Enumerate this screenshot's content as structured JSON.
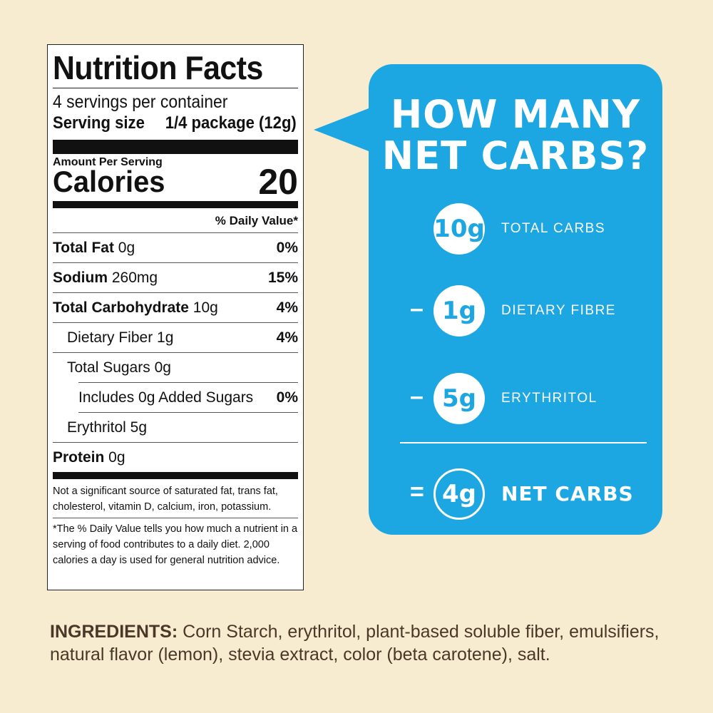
{
  "nutrition": {
    "title": "Nutrition Facts",
    "servings": "4 servings per container",
    "serving_size_label": "Serving size",
    "serving_size_value": "1/4 package (12g)",
    "amount_per_serving": "Amount Per Serving",
    "calories_label": "Calories",
    "calories_value": "20",
    "dv_header": "% Daily Value*",
    "rows": [
      {
        "name_bold": "Total Fat",
        "amount": " 0g",
        "pct": "0%"
      },
      {
        "name_bold": "Sodium",
        "amount": " 260mg",
        "pct": "15%"
      },
      {
        "name_bold": "Total Carbohydrate",
        "amount": " 10g",
        "pct": "4%"
      },
      {
        "name": "Dietary Fiber 1g",
        "pct": "4%"
      },
      {
        "name": "Total Sugars 0g",
        "pct": ""
      },
      {
        "name": "Includes 0g Added Sugars",
        "pct": "0%"
      },
      {
        "name": "Erythritol 5g",
        "pct": ""
      },
      {
        "name_bold": "Protein",
        "amount": " 0g",
        "pct": ""
      }
    ],
    "footnote1": "Not a significant source of saturated fat, trans fat, cholesterol, vitamin D, calcium, iron, potassium.",
    "footnote2": "*The % Daily Value tells you how much a nutrient in a serving of food contributes to a daily diet. 2,000 calories a day is used for general nutrition advice."
  },
  "bubble": {
    "question_line1": "HOW MANY",
    "question_line2": "NET CARBS?",
    "items": [
      {
        "op": "",
        "value": "10g",
        "label": "TOTAL CARBS"
      },
      {
        "op": "–",
        "value": "1g",
        "label": "DIETARY FIBRE"
      },
      {
        "op": "–",
        "value": "5g",
        "label": "ERYTHRITOL"
      }
    ],
    "result": {
      "op": "=",
      "value": "4g",
      "label": "NET CARBS"
    },
    "color": "#1ca6e2"
  },
  "ingredients": {
    "heading": "INGREDIENTS:",
    "text": " Corn Starch, erythritol, plant-based soluble fiber, emulsifiers, natural flavor (lemon), stevia extract, color (beta carotene), salt."
  }
}
